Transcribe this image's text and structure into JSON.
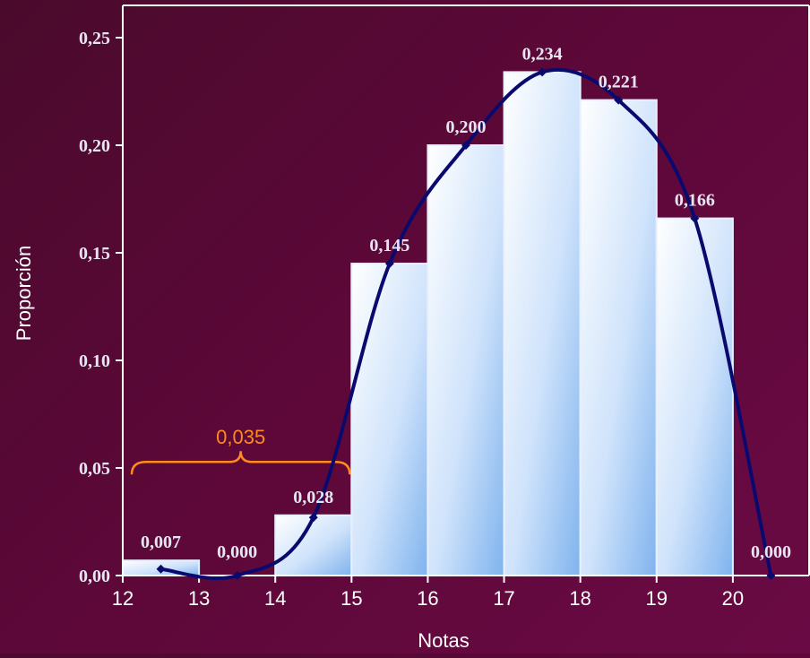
{
  "chart_data": {
    "type": "bar",
    "xlabel": "Notas",
    "ylabel": "Proporción",
    "ylim": [
      0,
      0.265
    ],
    "xlim": [
      12,
      21
    ],
    "y_ticks": [
      "0,00",
      "0,05",
      "0,10",
      "0,15",
      "0,20",
      "0,25"
    ],
    "y_tick_values": [
      0,
      0.05,
      0.1,
      0.15,
      0.2,
      0.25
    ],
    "x_ticks": [
      "12",
      "13",
      "14",
      "15",
      "16",
      "17",
      "18",
      "19",
      "20"
    ],
    "x_tick_values": [
      12,
      13,
      14,
      15,
      16,
      17,
      18,
      19,
      20
    ],
    "bins": [
      {
        "from": 12,
        "to": 13,
        "value": 0.007,
        "label": "0,007"
      },
      {
        "from": 13,
        "to": 14,
        "value": 0.0,
        "label": "0,000"
      },
      {
        "from": 14,
        "to": 15,
        "value": 0.028,
        "label": "0,028"
      },
      {
        "from": 15,
        "to": 16,
        "value": 0.145,
        "label": "0,145"
      },
      {
        "from": 16,
        "to": 17,
        "value": 0.2,
        "label": "0,200"
      },
      {
        "from": 17,
        "to": 18,
        "value": 0.234,
        "label": "0,234"
      },
      {
        "from": 18,
        "to": 19,
        "value": 0.221,
        "label": "0,221"
      },
      {
        "from": 19,
        "to": 20,
        "value": 0.166,
        "label": "0,166"
      },
      {
        "from": 20,
        "to": 21,
        "value": 0.0,
        "label": "0,000"
      }
    ],
    "curve": {
      "type": "line",
      "smooth": true,
      "color": "#0a0a6e",
      "points": [
        [
          12.5,
          0.003
        ],
        [
          13.5,
          0.0
        ],
        [
          14.5,
          0.027
        ],
        [
          15.5,
          0.145
        ],
        [
          16.5,
          0.2
        ],
        [
          17.5,
          0.234
        ],
        [
          18.5,
          0.221
        ],
        [
          19.5,
          0.166
        ],
        [
          20.5,
          0.0
        ]
      ]
    },
    "annotation": {
      "text": "0,035",
      "from": 12,
      "to": 15,
      "color": "#ff8c1a"
    },
    "colors": {
      "bar_fill_light": "#ffffff",
      "bar_fill_dark": "#7fb3ee",
      "bar_stroke": "#e8f0ff",
      "axis": "#ffffff"
    },
    "grid": false
  }
}
